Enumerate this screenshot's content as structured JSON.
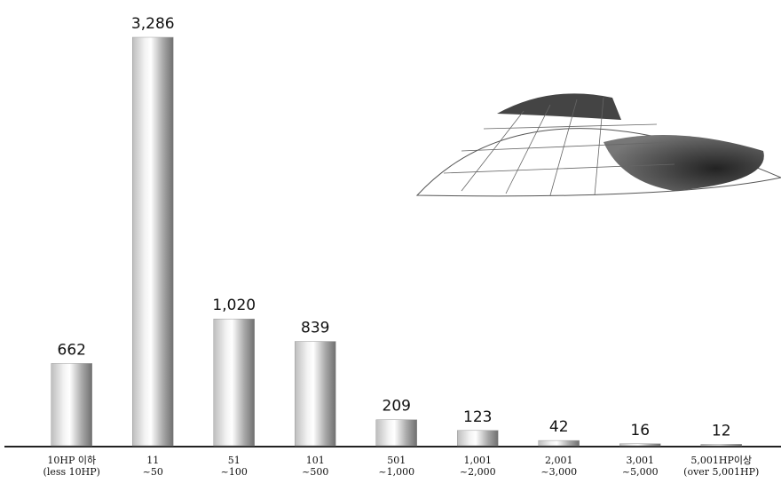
{
  "chart_data": {
    "type": "bar",
    "categories": [
      "10HP 이하\n(less 10HP)",
      "11\n~50",
      "51\n~100",
      "101\n~500",
      "501\n~1,000",
      "1,001\n~2,000",
      "2,001\n~3,000",
      "3,001\n~5,000",
      "5,001HP이상\n(over 5,001HP)"
    ],
    "values": [
      662,
      3286,
      1020,
      839,
      209,
      123,
      42,
      16,
      12
    ],
    "value_labels": [
      "662",
      "3,286",
      "1,020",
      "839",
      "209",
      "123",
      "42",
      "16",
      "12"
    ],
    "color": "#9a9a9a"
  }
}
